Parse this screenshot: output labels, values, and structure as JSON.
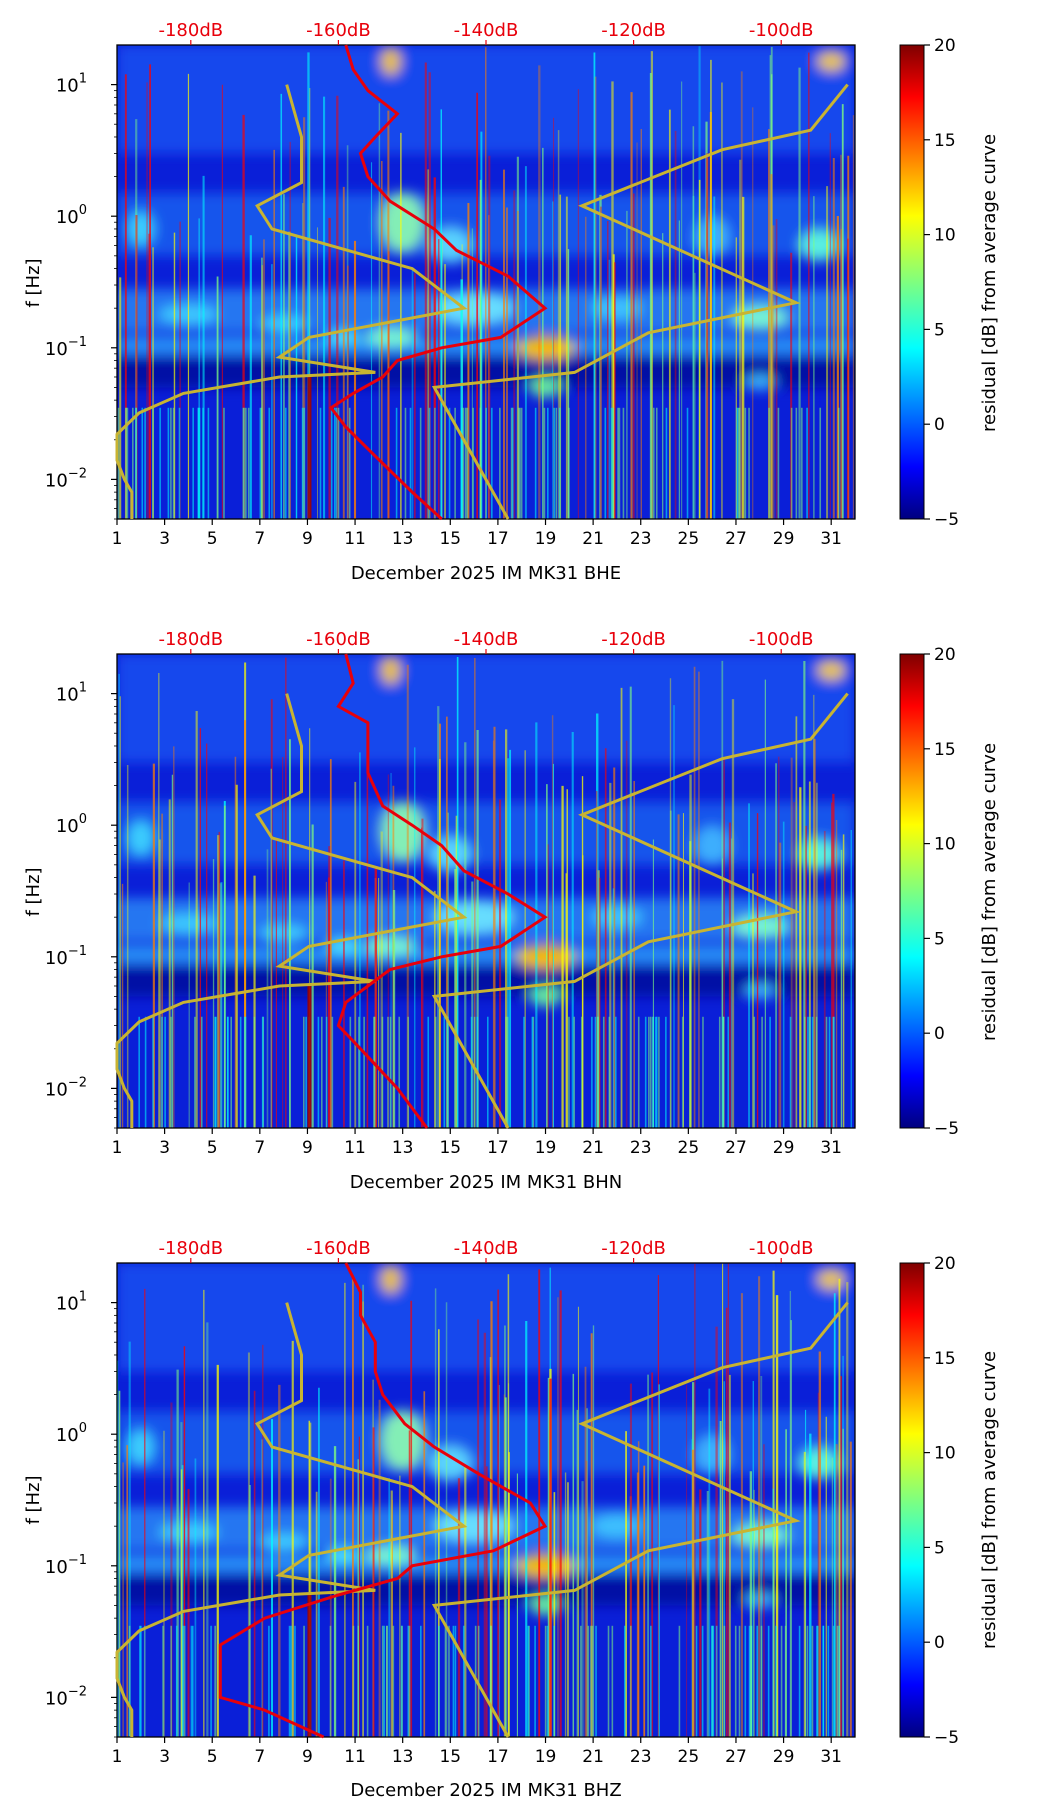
{
  "chart_data": [
    {
      "type": "heatmap",
      "channel": "BHE",
      "xlabel": "December 2025 IM MK31  BHE",
      "ylabel": "f [Hz]",
      "x_ticks": [
        "1",
        "3",
        "5",
        "7",
        "9",
        "11",
        "13",
        "15",
        "17",
        "19",
        "21",
        "23",
        "25",
        "27",
        "29",
        "31"
      ],
      "xlim": [
        1,
        32
      ],
      "ylim_hz": [
        0.005,
        20
      ],
      "y_ticks": [
        {
          "value": 0.01,
          "base": "10",
          "exp": "−2"
        },
        {
          "value": 0.1,
          "base": "10",
          "exp": "−1"
        },
        {
          "value": 1,
          "base": "10",
          "exp": "0"
        },
        {
          "value": 10,
          "base": "10",
          "exp": "1"
        }
      ],
      "db_ticks": [
        "-180dB",
        "-160dB",
        "-140dB",
        "-120dB",
        "-100dB"
      ],
      "db_range": [
        -190,
        -90
      ],
      "colorbar": {
        "label": "residual [dB] from average curve",
        "min": -5,
        "max": 20,
        "ticks": [
          "−5",
          "0",
          "5",
          "10",
          "15",
          "20"
        ]
      },
      "noise_models": {
        "low": [
          [
            -167,
            10
          ],
          [
            -165,
            4
          ],
          [
            -165,
            1.8
          ],
          [
            -171,
            1.2
          ],
          [
            -169,
            0.8
          ],
          [
            -150,
            0.4
          ],
          [
            -143,
            0.2
          ],
          [
            -164,
            0.12
          ],
          [
            -168,
            0.085
          ],
          [
            -155,
            0.065
          ],
          [
            -168,
            0.06
          ],
          [
            -181,
            0.045
          ],
          [
            -187,
            0.032
          ],
          [
            -190,
            0.022
          ],
          [
            -190,
            0.014
          ],
          [
            -189,
            0.01
          ],
          [
            -188,
            0.008
          ],
          [
            -188,
            0.005
          ]
        ],
        "high": [
          [
            -91,
            10
          ],
          [
            -96,
            4.5
          ],
          [
            -108,
            3.2
          ],
          [
            -127,
            1.2
          ],
          [
            -98,
            0.22
          ],
          [
            -118,
            0.13
          ],
          [
            -128,
            0.065
          ],
          [
            -147,
            0.05
          ],
          [
            -137,
            0.005
          ]
        ]
      },
      "median_psd": [
        [
          -159,
          20
        ],
        [
          -158,
          13
        ],
        [
          -156,
          9
        ],
        [
          -152,
          6
        ],
        [
          -155,
          4
        ],
        [
          -157,
          3
        ],
        [
          -156,
          2
        ],
        [
          -153,
          1.3
        ],
        [
          -147,
          0.8
        ],
        [
          -144,
          0.55
        ],
        [
          -137,
          0.35
        ],
        [
          -132,
          0.2
        ],
        [
          -138,
          0.12
        ],
        [
          -146,
          0.1
        ],
        [
          -152,
          0.08
        ],
        [
          -154,
          0.06
        ],
        [
          -158,
          0.045
        ],
        [
          -161,
          0.035
        ],
        [
          -159,
          0.025
        ],
        [
          -155,
          0.015
        ],
        [
          -150,
          0.008
        ],
        [
          -146,
          0.005
        ]
      ]
    },
    {
      "type": "heatmap",
      "channel": "BHN",
      "xlabel": "December 2025 IM MK31  BHN",
      "ylabel": "f [Hz]",
      "x_ticks": [
        "1",
        "3",
        "5",
        "7",
        "9",
        "11",
        "13",
        "15",
        "17",
        "19",
        "21",
        "23",
        "25",
        "27",
        "29",
        "31"
      ],
      "xlim": [
        1,
        32
      ],
      "ylim_hz": [
        0.005,
        20
      ],
      "y_ticks": [
        {
          "value": 0.01,
          "base": "10",
          "exp": "−2"
        },
        {
          "value": 0.1,
          "base": "10",
          "exp": "−1"
        },
        {
          "value": 1,
          "base": "10",
          "exp": "0"
        },
        {
          "value": 10,
          "base": "10",
          "exp": "1"
        }
      ],
      "db_ticks": [
        "-180dB",
        "-160dB",
        "-140dB",
        "-120dB",
        "-100dB"
      ],
      "db_range": [
        -190,
        -90
      ],
      "colorbar": {
        "label": "residual [dB] from average curve",
        "min": -5,
        "max": 20,
        "ticks": [
          "−5",
          "0",
          "5",
          "10",
          "15",
          "20"
        ]
      },
      "noise_models": {
        "low": [
          [
            -167,
            10
          ],
          [
            -165,
            4
          ],
          [
            -165,
            1.8
          ],
          [
            -171,
            1.2
          ],
          [
            -169,
            0.8
          ],
          [
            -150,
            0.4
          ],
          [
            -143,
            0.2
          ],
          [
            -164,
            0.12
          ],
          [
            -168,
            0.085
          ],
          [
            -155,
            0.065
          ],
          [
            -168,
            0.06
          ],
          [
            -181,
            0.045
          ],
          [
            -187,
            0.032
          ],
          [
            -190,
            0.022
          ],
          [
            -190,
            0.014
          ],
          [
            -189,
            0.01
          ],
          [
            -188,
            0.008
          ],
          [
            -188,
            0.005
          ]
        ],
        "high": [
          [
            -91,
            10
          ],
          [
            -96,
            4.5
          ],
          [
            -108,
            3.2
          ],
          [
            -127,
            1.2
          ],
          [
            -98,
            0.22
          ],
          [
            -118,
            0.13
          ],
          [
            -128,
            0.065
          ],
          [
            -147,
            0.05
          ],
          [
            -137,
            0.005
          ]
        ]
      },
      "median_psd": [
        [
          -159,
          20
        ],
        [
          -158,
          12
        ],
        [
          -160,
          8
        ],
        [
          -156,
          6
        ],
        [
          -156,
          4
        ],
        [
          -156,
          2.5
        ],
        [
          -154,
          1.4
        ],
        [
          -150,
          1
        ],
        [
          -146,
          0.7
        ],
        [
          -143,
          0.45
        ],
        [
          -137,
          0.3
        ],
        [
          -132,
          0.2
        ],
        [
          -138,
          0.12
        ],
        [
          -146,
          0.1
        ],
        [
          -153,
          0.08
        ],
        [
          -156,
          0.06
        ],
        [
          -159,
          0.045
        ],
        [
          -160,
          0.03
        ],
        [
          -157,
          0.02
        ],
        [
          -152,
          0.01
        ],
        [
          -148,
          0.005
        ]
      ]
    },
    {
      "type": "heatmap",
      "channel": "BHZ",
      "xlabel": "December 2025 IM MK31  BHZ",
      "ylabel": "f [Hz]",
      "x_ticks": [
        "1",
        "3",
        "5",
        "7",
        "9",
        "11",
        "13",
        "15",
        "17",
        "19",
        "21",
        "23",
        "25",
        "27",
        "29",
        "31"
      ],
      "xlim": [
        1,
        32
      ],
      "ylim_hz": [
        0.005,
        20
      ],
      "y_ticks": [
        {
          "value": 0.01,
          "base": "10",
          "exp": "−2"
        },
        {
          "value": 0.1,
          "base": "10",
          "exp": "−1"
        },
        {
          "value": 1,
          "base": "10",
          "exp": "0"
        },
        {
          "value": 10,
          "base": "10",
          "exp": "1"
        }
      ],
      "db_ticks": [
        "-180dB",
        "-160dB",
        "-140dB",
        "-120dB",
        "-100dB"
      ],
      "db_range": [
        -190,
        -90
      ],
      "colorbar": {
        "label": "residual [dB] from average curve",
        "min": -5,
        "max": 20,
        "ticks": [
          "−5",
          "0",
          "5",
          "10",
          "15",
          "20"
        ]
      },
      "noise_models": {
        "low": [
          [
            -167,
            10
          ],
          [
            -165,
            4
          ],
          [
            -165,
            1.8
          ],
          [
            -171,
            1.2
          ],
          [
            -169,
            0.8
          ],
          [
            -150,
            0.4
          ],
          [
            -143,
            0.2
          ],
          [
            -164,
            0.12
          ],
          [
            -168,
            0.085
          ],
          [
            -155,
            0.065
          ],
          [
            -168,
            0.06
          ],
          [
            -181,
            0.045
          ],
          [
            -187,
            0.032
          ],
          [
            -190,
            0.022
          ],
          [
            -190,
            0.014
          ],
          [
            -189,
            0.01
          ],
          [
            -188,
            0.008
          ],
          [
            -188,
            0.005
          ]
        ],
        "high": [
          [
            -91,
            10
          ],
          [
            -96,
            4.5
          ],
          [
            -108,
            3.2
          ],
          [
            -127,
            1.2
          ],
          [
            -98,
            0.22
          ],
          [
            -118,
            0.13
          ],
          [
            -128,
            0.065
          ],
          [
            -147,
            0.05
          ],
          [
            -137,
            0.005
          ]
        ]
      },
      "median_psd": [
        [
          -159,
          20
        ],
        [
          -157,
          12
        ],
        [
          -157,
          8
        ],
        [
          -155,
          5
        ],
        [
          -155,
          3
        ],
        [
          -154,
          2
        ],
        [
          -151,
          1.2
        ],
        [
          -147,
          0.8
        ],
        [
          -141,
          0.5
        ],
        [
          -134,
          0.3
        ],
        [
          -132,
          0.2
        ],
        [
          -139,
          0.13
        ],
        [
          -150,
          0.1
        ],
        [
          -152,
          0.08
        ],
        [
          -160,
          0.06
        ],
        [
          -170,
          0.04
        ],
        [
          -176,
          0.025
        ],
        [
          -176,
          0.014
        ],
        [
          -176,
          0.01
        ],
        [
          -170,
          0.008
        ],
        [
          -162,
          0.005
        ]
      ]
    }
  ],
  "palette": {
    "jet": [
      "#00007f",
      "#0000ff",
      "#007fff",
      "#00ffff",
      "#7fff7f",
      "#ffff00",
      "#ff7f00",
      "#ff0000",
      "#7f0000"
    ],
    "median_color": "#e8000b",
    "model_color": "#c8b432",
    "db_tick_color": "#e8000b"
  }
}
